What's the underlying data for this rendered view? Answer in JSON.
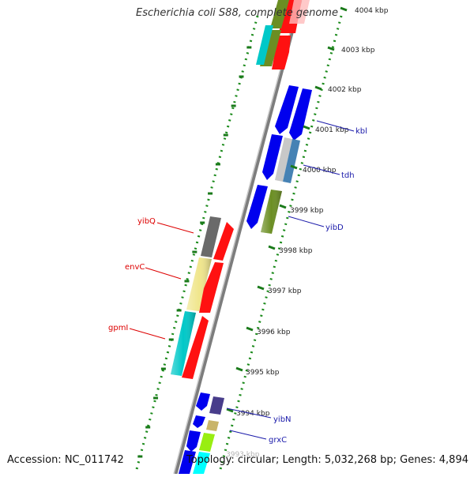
{
  "title": "Escherichia coli S88, complete genome",
  "accession": "Accession: NC_011742",
  "topology": "Topology: circular; Length: 5,032,268 bp; Genes: 4,894",
  "colors": {
    "backbone": "#8a8a8a",
    "tick": "#1a7a1a",
    "forward_label": "#dd0000",
    "reverse_label": "#1a1aaa"
  },
  "kbp_labels": [
    "4004 kbp",
    "4003 kbp",
    "4002 kbp",
    "4001 kbp",
    "4000 kbp",
    "3999 kbp",
    "3998 kbp",
    "3997 kbp",
    "3996 kbp",
    "3995 kbp",
    "3994 kbp",
    "3993 kbp"
  ],
  "gene_labels": [
    {
      "name": "yibQ",
      "strand": "forward"
    },
    {
      "name": "envC",
      "strand": "forward"
    },
    {
      "name": "gpmI",
      "strand": "forward"
    },
    {
      "name": "kbl",
      "strand": "reverse"
    },
    {
      "name": "tdh",
      "strand": "reverse"
    },
    {
      "name": "yibD",
      "strand": "reverse"
    },
    {
      "name": "yibN",
      "strand": "reverse"
    },
    {
      "name": "grxC",
      "strand": "reverse"
    }
  ]
}
